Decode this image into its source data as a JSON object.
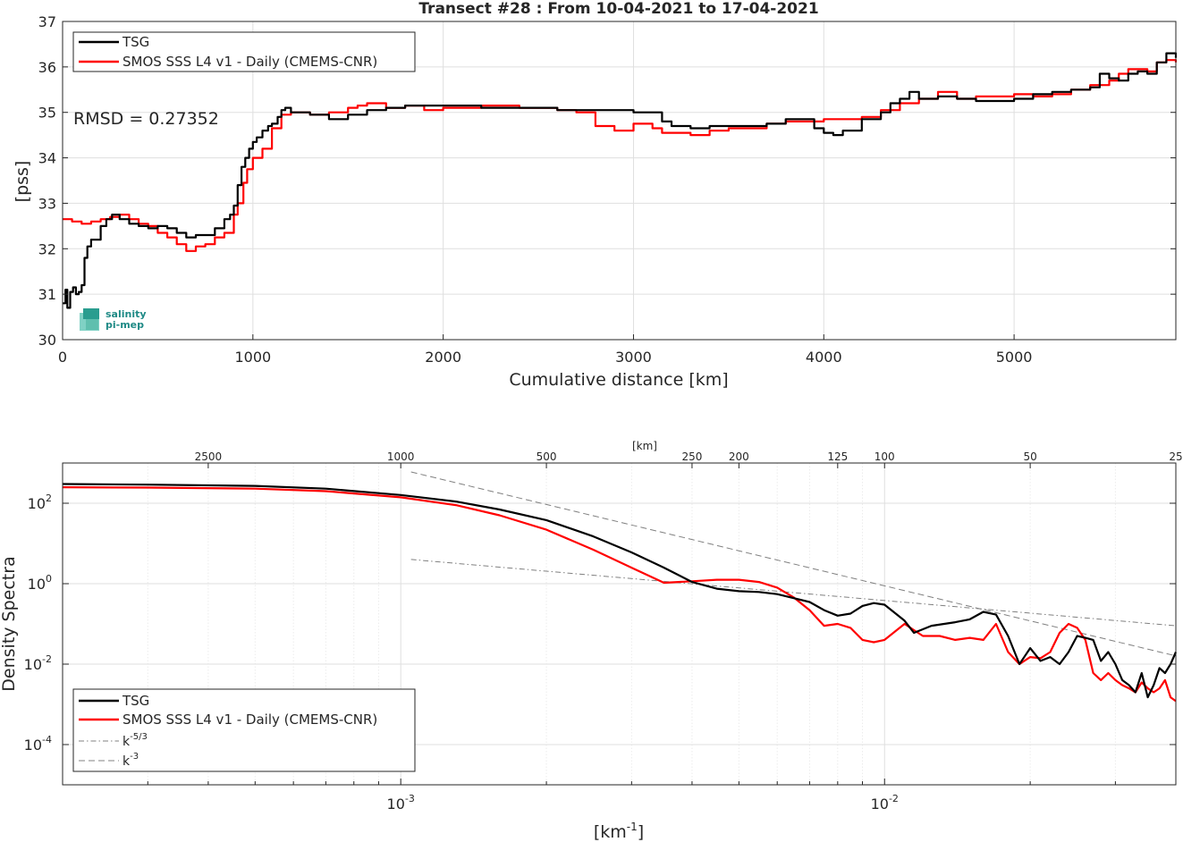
{
  "chart_data": [
    {
      "type": "line",
      "title": "Transect #28 : From 10-04-2021 to 17-04-2021",
      "xlabel": "Cumulative distance [km]",
      "ylabel": "[pss]",
      "xlim": [
        0,
        5850
      ],
      "ylim": [
        30,
        37
      ],
      "xticks": [
        "0",
        "1000",
        "2000",
        "3000",
        "4000",
        "5000"
      ],
      "yticks": [
        "30",
        "31",
        "32",
        "33",
        "34",
        "35",
        "36",
        "37"
      ],
      "grid": true,
      "legend_position": "top-left",
      "annotation": "RMSD = 0.27352",
      "logo": {
        "line1": "salinity",
        "line2": "pi-mep"
      },
      "series": [
        {
          "name": "TSG",
          "color": "#000000",
          "x": [
            0,
            15,
            25,
            40,
            55,
            70,
            85,
            100,
            115,
            130,
            150,
            170,
            200,
            230,
            260,
            300,
            350,
            400,
            450,
            500,
            550,
            600,
            650,
            700,
            750,
            800,
            850,
            880,
            900,
            920,
            940,
            960,
            980,
            1000,
            1020,
            1050,
            1080,
            1100,
            1130,
            1150,
            1170,
            1200,
            1300,
            1400,
            1500,
            1600,
            1700,
            1800,
            1900,
            2000,
            2200,
            2400,
            2600,
            2800,
            3000,
            3100,
            3150,
            3200,
            3300,
            3400,
            3500,
            3700,
            3800,
            3900,
            3950,
            4000,
            4050,
            4100,
            4200,
            4300,
            4350,
            4400,
            4450,
            4500,
            4600,
            4700,
            4800,
            5000,
            5100,
            5200,
            5300,
            5400,
            5450,
            5500,
            5550,
            5600,
            5650,
            5700,
            5750,
            5800,
            5850
          ],
          "y": [
            30.8,
            31.1,
            30.7,
            31.05,
            31.15,
            31.0,
            31.05,
            31.2,
            31.8,
            32.05,
            32.2,
            32.2,
            32.5,
            32.65,
            32.75,
            32.65,
            32.55,
            32.5,
            32.45,
            32.5,
            32.45,
            32.35,
            32.25,
            32.3,
            32.3,
            32.45,
            32.65,
            32.75,
            32.95,
            33.4,
            33.8,
            34.0,
            34.2,
            34.35,
            34.45,
            34.6,
            34.7,
            34.75,
            34.9,
            35.05,
            35.1,
            35.0,
            34.95,
            34.85,
            34.95,
            35.05,
            35.1,
            35.15,
            35.15,
            35.15,
            35.1,
            35.1,
            35.05,
            35.05,
            35.0,
            35.0,
            34.8,
            34.7,
            34.65,
            34.7,
            34.7,
            34.75,
            34.85,
            34.85,
            34.65,
            34.55,
            34.5,
            34.6,
            34.85,
            35.0,
            35.2,
            35.3,
            35.45,
            35.3,
            35.35,
            35.3,
            35.25,
            35.3,
            35.4,
            35.45,
            35.5,
            35.55,
            35.85,
            35.75,
            35.7,
            35.85,
            35.9,
            35.85,
            36.1,
            36.3,
            36.2
          ]
        },
        {
          "name": "SMOS SSS L4 v1 - Daily (CMEMS-CNR)",
          "color": "#ff0000",
          "x": [
            0,
            50,
            100,
            150,
            200,
            250,
            300,
            350,
            400,
            450,
            500,
            550,
            600,
            650,
            700,
            750,
            800,
            850,
            900,
            920,
            950,
            970,
            1000,
            1050,
            1100,
            1150,
            1200,
            1300,
            1400,
            1500,
            1550,
            1600,
            1700,
            1800,
            1900,
            2000,
            2200,
            2400,
            2600,
            2700,
            2800,
            2900,
            3000,
            3100,
            3150,
            3200,
            3300,
            3400,
            3500,
            3700,
            3800,
            4000,
            4100,
            4200,
            4300,
            4400,
            4500,
            4600,
            4700,
            4800,
            5000,
            5100,
            5200,
            5300,
            5400,
            5500,
            5550,
            5600,
            5700,
            5750,
            5800,
            5850
          ],
          "y": [
            32.65,
            32.6,
            32.55,
            32.6,
            32.65,
            32.7,
            32.75,
            32.65,
            32.55,
            32.5,
            32.35,
            32.25,
            32.1,
            31.95,
            32.05,
            32.1,
            32.25,
            32.35,
            32.75,
            33.0,
            33.45,
            33.75,
            34.0,
            34.2,
            34.65,
            34.95,
            35.0,
            34.95,
            35.0,
            35.1,
            35.15,
            35.2,
            35.1,
            35.15,
            35.05,
            35.1,
            35.15,
            35.1,
            35.05,
            35.0,
            34.7,
            34.6,
            34.75,
            34.65,
            34.55,
            34.55,
            34.5,
            34.6,
            34.65,
            34.75,
            34.8,
            34.85,
            34.85,
            34.9,
            35.05,
            35.2,
            35.3,
            35.45,
            35.3,
            35.35,
            35.4,
            35.35,
            35.4,
            35.5,
            35.6,
            35.7,
            35.85,
            35.95,
            35.9,
            36.1,
            36.15,
            36.1
          ]
        }
      ]
    },
    {
      "type": "line",
      "title": "",
      "xlabel": "[km^-1]",
      "xlabel_base": "[km",
      "xlabel_exp": "-1",
      "xlabel_end": "]",
      "ylabel": "Density Spectra",
      "xscale": "log",
      "yscale": "log",
      "xlim": [
        0.0002,
        0.04
      ],
      "ylim": [
        1e-05,
        1000
      ],
      "xticks": [
        {
          "base": "10",
          "exp": "-3"
        },
        {
          "base": "10",
          "exp": "-2"
        }
      ],
      "yticks": [
        {
          "base": "10",
          "exp": "-4"
        },
        {
          "base": "10",
          "exp": "-2"
        },
        {
          "base": "10",
          "exp": "0"
        },
        {
          "base": "10",
          "exp": "2"
        }
      ],
      "top_axis_label": "[km]",
      "top_axis_ticks": [
        "2500",
        "1000",
        "500",
        "250",
        "200",
        "125",
        "100",
        "50",
        "25"
      ],
      "grid": true,
      "legend_position": "bottom-left",
      "series": [
        {
          "name": "TSG",
          "color": "#000000",
          "x": [
            0.0002,
            0.0003,
            0.0005,
            0.0007,
            0.001,
            0.0013,
            0.0016,
            0.002,
            0.0025,
            0.003,
            0.0035,
            0.004,
            0.0045,
            0.005,
            0.0055,
            0.006,
            0.007,
            0.0075,
            0.008,
            0.0085,
            0.009,
            0.0095,
            0.01,
            0.011,
            0.0115,
            0.0125,
            0.014,
            0.015,
            0.016,
            0.017,
            0.018,
            0.019,
            0.02,
            0.021,
            0.022,
            0.023,
            0.024,
            0.025,
            0.026,
            0.027,
            0.028,
            0.029,
            0.03,
            0.031,
            0.032,
            0.033,
            0.034,
            0.035,
            0.036,
            0.037,
            0.038,
            0.039,
            0.04
          ],
          "y": [
            300,
            290,
            270,
            230,
            160,
            110,
            70,
            38,
            15,
            6,
            2.5,
            1.1,
            0.75,
            0.65,
            0.62,
            0.55,
            0.35,
            0.22,
            0.16,
            0.18,
            0.28,
            0.33,
            0.3,
            0.12,
            0.06,
            0.09,
            0.11,
            0.13,
            0.2,
            0.17,
            0.05,
            0.01,
            0.025,
            0.012,
            0.015,
            0.01,
            0.02,
            0.05,
            0.045,
            0.04,
            0.012,
            0.02,
            0.01,
            0.004,
            0.003,
            0.002,
            0.006,
            0.0015,
            0.003,
            0.008,
            0.006,
            0.01,
            0.02
          ]
        },
        {
          "name": "SMOS SSS L4 v1 - Daily (CMEMS-CNR)",
          "color": "#ff0000",
          "x": [
            0.0002,
            0.0003,
            0.0005,
            0.0007,
            0.001,
            0.0013,
            0.0016,
            0.002,
            0.0025,
            0.003,
            0.0035,
            0.004,
            0.0045,
            0.005,
            0.0055,
            0.006,
            0.0065,
            0.007,
            0.0075,
            0.008,
            0.0085,
            0.009,
            0.0095,
            0.01,
            0.011,
            0.012,
            0.013,
            0.014,
            0.015,
            0.016,
            0.017,
            0.018,
            0.019,
            0.02,
            0.021,
            0.022,
            0.023,
            0.024,
            0.025,
            0.026,
            0.027,
            0.028,
            0.029,
            0.03,
            0.031,
            0.032,
            0.033,
            0.034,
            0.035,
            0.036,
            0.037,
            0.038,
            0.039,
            0.04
          ],
          "y": [
            250,
            245,
            230,
            200,
            140,
            90,
            50,
            22,
            7,
            2.5,
            1.05,
            1.15,
            1.25,
            1.25,
            1.1,
            0.8,
            0.45,
            0.22,
            0.09,
            0.1,
            0.08,
            0.04,
            0.035,
            0.04,
            0.1,
            0.05,
            0.05,
            0.04,
            0.045,
            0.04,
            0.1,
            0.02,
            0.01,
            0.015,
            0.014,
            0.02,
            0.06,
            0.1,
            0.08,
            0.04,
            0.006,
            0.004,
            0.006,
            0.004,
            0.003,
            0.0025,
            0.002,
            0.0035,
            0.0025,
            0.002,
            0.0025,
            0.004,
            0.0015,
            0.0012
          ]
        },
        {
          "name": "k^-5/3",
          "label_base": "k",
          "label_exp": "-5/3",
          "color": "#808080",
          "dash": "dashdot",
          "x": [
            0.00105,
            0.04
          ],
          "y": [
            4.0,
            0.09
          ]
        },
        {
          "name": "k^-3",
          "label_base": "k",
          "label_exp": "-3",
          "color": "#808080",
          "dash": "dashed",
          "x": [
            0.00105,
            0.04
          ],
          "y": [
            600,
            0.016
          ]
        }
      ]
    }
  ]
}
